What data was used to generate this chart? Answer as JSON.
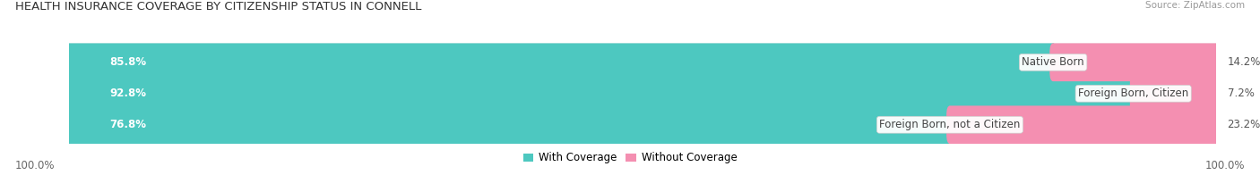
{
  "title": "HEALTH INSURANCE COVERAGE BY CITIZENSHIP STATUS IN CONNELL",
  "source": "Source: ZipAtlas.com",
  "categories": [
    "Native Born",
    "Foreign Born, Citizen",
    "Foreign Born, not a Citizen"
  ],
  "with_coverage": [
    85.8,
    92.8,
    76.8
  ],
  "without_coverage": [
    14.2,
    7.2,
    23.2
  ],
  "color_with": "#4dc8c0",
  "color_without": "#f48fb1",
  "color_bg": "#e8e8e8",
  "title_fontsize": 9.5,
  "source_fontsize": 7.5,
  "label_fontsize": 8.5,
  "legend_fontsize": 8.5,
  "axis_label_left": "100.0%",
  "axis_label_right": "100.0%",
  "figsize": [
    14.06,
    1.96
  ],
  "dpi": 100
}
